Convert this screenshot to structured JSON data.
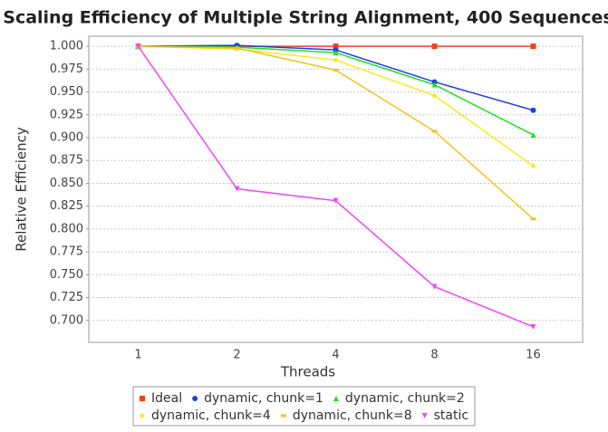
{
  "chart_data": {
    "type": "line",
    "title": "Scaling Efficiency of Multiple String Alignment, 400 Sequences",
    "x_label": "Threads",
    "y_label": "Relative Efficiency",
    "categories": [
      "1",
      "2",
      "4",
      "8",
      "16"
    ],
    "series": [
      {
        "name": "Ideal",
        "color": "#f0401e",
        "marker": "square",
        "values": [
          1.0,
          1.0,
          1.0,
          1.0,
          1.0
        ]
      },
      {
        "name": "dynamic, chunk=1",
        "color": "#1f3fe0",
        "marker": "circle",
        "values": [
          1.0,
          1.001,
          0.996,
          0.961,
          0.93
        ]
      },
      {
        "name": "dynamic, chunk=2",
        "color": "#22e022",
        "marker": "triangle-up",
        "values": [
          1.0,
          0.999,
          0.993,
          0.958,
          0.903
        ]
      },
      {
        "name": "dynamic, chunk=4",
        "color": "#f4ec20",
        "marker": "diamond",
        "values": [
          1.0,
          0.997,
          0.985,
          0.946,
          0.869
        ]
      },
      {
        "name": "dynamic, chunk=8",
        "color": "#f2c21e",
        "marker": "rect",
        "values": [
          1.0,
          0.998,
          0.974,
          0.907,
          0.811
        ]
      },
      {
        "name": "static",
        "color": "#f048f0",
        "marker": "triangle-down",
        "values": [
          1.0,
          0.844,
          0.831,
          0.737,
          0.693
        ]
      }
    ],
    "ylim": [
      0.676,
      1.011
    ],
    "yticks": [
      {
        "value": 0.7,
        "label": "0.700"
      },
      {
        "value": 0.725,
        "label": "0.725"
      },
      {
        "value": 0.75,
        "label": "0.750"
      },
      {
        "value": 0.775,
        "label": "0.775"
      },
      {
        "value": 0.8,
        "label": "0.800"
      },
      {
        "value": 0.825,
        "label": "0.825"
      },
      {
        "value": 0.85,
        "label": "0.850"
      },
      {
        "value": 0.875,
        "label": "0.875"
      },
      {
        "value": 0.9,
        "label": "0.900"
      },
      {
        "value": 0.925,
        "label": "0.925"
      },
      {
        "value": 0.95,
        "label": "0.950"
      },
      {
        "value": 0.975,
        "label": "0.975"
      },
      {
        "value": 1.0,
        "label": "1.000"
      }
    ],
    "grid": true,
    "legend": "bottom"
  }
}
